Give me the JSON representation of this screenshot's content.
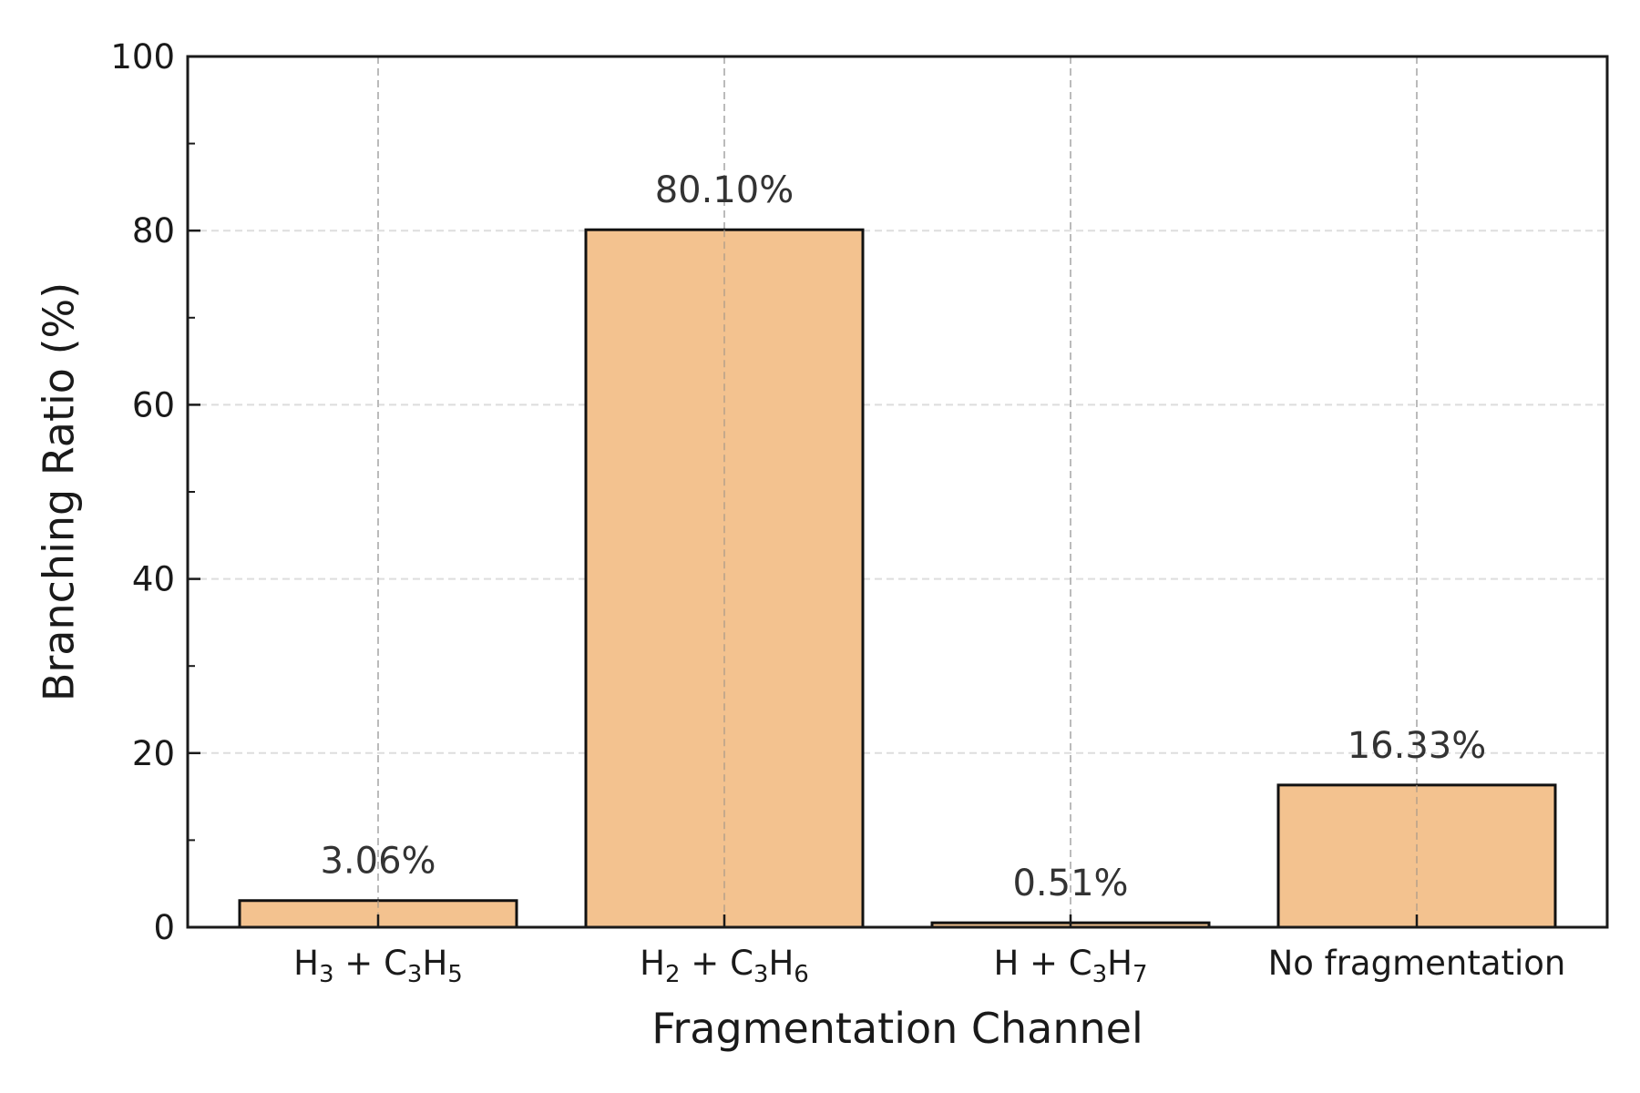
{
  "chart_data": {
    "type": "bar",
    "categories": [
      {
        "main": "H",
        "parts": [
          [
            "H",
            "3"
          ],
          [
            " + C",
            ""
          ],
          [
            "",
            "3"
          ],
          [
            "H",
            "5"
          ]
        ]
      },
      {
        "main": "H",
        "parts": [
          [
            "H",
            "2"
          ],
          [
            " + C",
            ""
          ],
          [
            "",
            "3"
          ],
          [
            "H",
            "6"
          ]
        ]
      },
      {
        "main": "H",
        "parts": [
          [
            "H",
            ""
          ],
          [
            " + C",
            ""
          ],
          [
            "",
            "3"
          ],
          [
            "H",
            "7"
          ]
        ]
      },
      {
        "main": "No fragmentation",
        "parts": [
          [
            "No fragmentation",
            ""
          ]
        ]
      }
    ],
    "category_text": [
      "H3 + C3H5",
      "H2 + C3H6",
      "H + C3H7",
      "No fragmentation"
    ],
    "values": [
      3.06,
      80.1,
      0.51,
      16.33
    ],
    "data_labels": [
      "3.06%",
      "80.10%",
      "0.51%",
      "16.33%"
    ],
    "xlabel": "Fragmentation Channel",
    "ylabel": "Branching Ratio (%)",
    "ylim": [
      0,
      100
    ],
    "yticks": [
      0,
      20,
      40,
      60,
      80,
      100
    ],
    "grid": true,
    "colors": {
      "bar": "#f3c28f",
      "edge": "#111111",
      "grid": "#bbbbbb",
      "axis": "#1a1a1a"
    }
  }
}
